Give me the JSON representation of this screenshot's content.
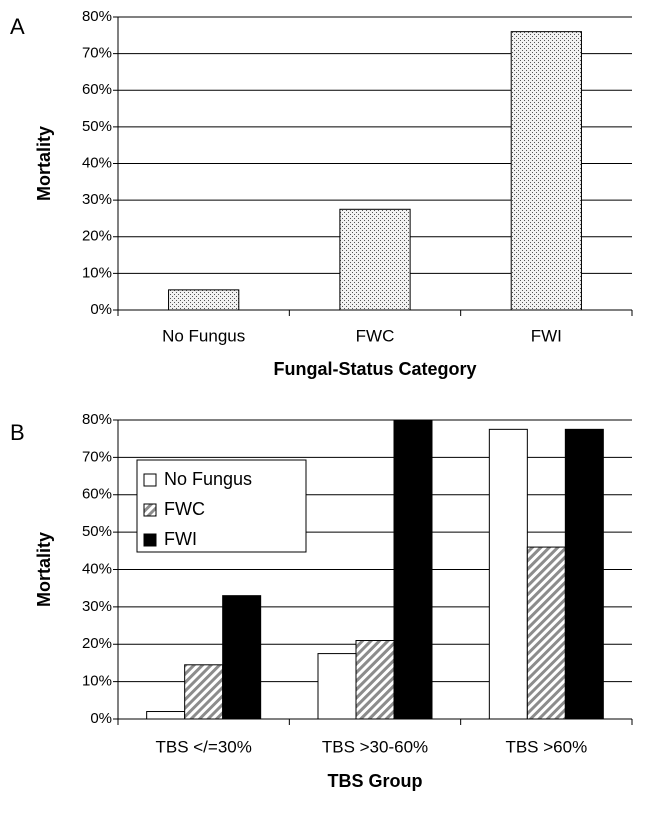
{
  "chart_data": [
    {
      "type": "bar",
      "panel": "A",
      "ylabel": "Mortality",
      "xlabel": "Fungal-Status Category",
      "categories": [
        "No Fungus",
        "FWC",
        "FWI"
      ],
      "values": [
        5.5,
        27.5,
        76
      ],
      "ylim": [
        0,
        80
      ],
      "yticks": [
        {
          "value": 0,
          "label": "0%"
        },
        {
          "value": 10,
          "label": "10%"
        },
        {
          "value": 20,
          "label": "20%"
        },
        {
          "value": 30,
          "label": "30%"
        },
        {
          "value": 40,
          "label": "40%"
        },
        {
          "value": 50,
          "label": "50%"
        },
        {
          "value": 60,
          "label": "60%"
        },
        {
          "value": 70,
          "label": "70%"
        },
        {
          "value": 80,
          "label": "80%"
        }
      ],
      "grid": true
    },
    {
      "type": "grouped_bar",
      "panel": "B",
      "ylabel": "Mortality",
      "xlabel": "TBS Group",
      "categories": [
        "TBS </=30%",
        "TBS >30-60%",
        "TBS >60%"
      ],
      "series": [
        {
          "name": "No Fungus",
          "color": "#ffffff",
          "values": [
            2,
            17.5,
            77.5
          ]
        },
        {
          "name": "FWC",
          "color": "#8c8c8c",
          "values": [
            14.5,
            21,
            46
          ]
        },
        {
          "name": "FWI",
          "color": "#000000",
          "values": [
            33,
            80,
            77.5
          ]
        }
      ],
      "ylim": [
        0,
        80
      ],
      "yticks": [
        {
          "value": 0,
          "label": "0%"
        },
        {
          "value": 10,
          "label": "10%"
        },
        {
          "value": 20,
          "label": "20%"
        },
        {
          "value": 30,
          "label": "30%"
        },
        {
          "value": 40,
          "label": "40%"
        },
        {
          "value": 50,
          "label": "50%"
        },
        {
          "value": 60,
          "label": "60%"
        },
        {
          "value": 70,
          "label": "70%"
        },
        {
          "value": 80,
          "label": "80%"
        }
      ],
      "grid": true,
      "legend": "upper-left"
    }
  ]
}
